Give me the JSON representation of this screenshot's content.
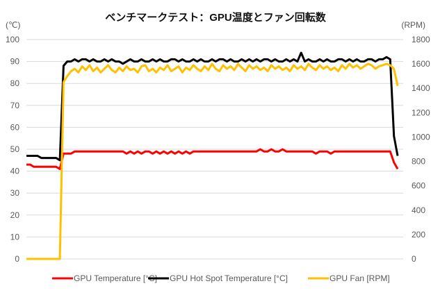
{
  "chart_data": {
    "type": "line",
    "title": "ベンチマークテスト：GPU温度とファン回転数",
    "ylabel": "(℃)",
    "y2label": "(RPM)",
    "ylim": [
      0,
      100
    ],
    "y2lim": [
      0,
      1800
    ],
    "yticks": [
      "0",
      "10",
      "20",
      "30",
      "40",
      "50",
      "60",
      "70",
      "80",
      "90",
      "100"
    ],
    "y2ticks": [
      "0",
      "200",
      "400",
      "600",
      "800",
      "1000",
      "1200",
      "1400",
      "1600",
      "1800"
    ],
    "grid": true,
    "legend_position": "bottom",
    "series": [
      {
        "name": "GPU Temperature [°C]",
        "axis": "left",
        "color": "#ff0000",
        "values": [
          43,
          43,
          42,
          42,
          42,
          42,
          42,
          42,
          42,
          41,
          48,
          48,
          48,
          49,
          49,
          49,
          49,
          49,
          49,
          49,
          49,
          49,
          49,
          49,
          49,
          49,
          49,
          48,
          49,
          48,
          49,
          48,
          49,
          49,
          48,
          49,
          48,
          49,
          48,
          49,
          48,
          49,
          48,
          49,
          48,
          49,
          49,
          49,
          49,
          49,
          49,
          49,
          49,
          49,
          49,
          49,
          49,
          49,
          49,
          49,
          49,
          49,
          49,
          50,
          49,
          49,
          50,
          49,
          49,
          50,
          49,
          49,
          49,
          49,
          49,
          49,
          49,
          49,
          48,
          49,
          49,
          49,
          48,
          49,
          49,
          49,
          49,
          49,
          49,
          49,
          49,
          49,
          49,
          49,
          49,
          49,
          49,
          49,
          49,
          44,
          41
        ]
      },
      {
        "name": "GPU Hot Spot Temperature [°C]",
        "axis": "left",
        "color": "#000000",
        "values": [
          47,
          47,
          47,
          47,
          46,
          46,
          46,
          46,
          46,
          45,
          88,
          90,
          90,
          91,
          90,
          91,
          91,
          90,
          91,
          90,
          90,
          91,
          90,
          91,
          90,
          90,
          89,
          90,
          91,
          90,
          90,
          91,
          90,
          90,
          91,
          90,
          91,
          90,
          90,
          91,
          91,
          90,
          91,
          90,
          90,
          91,
          90,
          91,
          90,
          90,
          91,
          90,
          91,
          91,
          90,
          91,
          90,
          90,
          91,
          90,
          91,
          90,
          91,
          90,
          91,
          91,
          90,
          91,
          90,
          90,
          91,
          90,
          91,
          90,
          94,
          90,
          91,
          90,
          90,
          91,
          90,
          91,
          90,
          90,
          91,
          91,
          90,
          91,
          90,
          91,
          90,
          90,
          91,
          91,
          90,
          91,
          91,
          92,
          91,
          56,
          47
        ]
      },
      {
        "name": "GPU Fan [RPM]",
        "axis": "right",
        "color": "#ffc000",
        "values": [
          0,
          0,
          0,
          0,
          0,
          0,
          0,
          0,
          0,
          0,
          1450,
          1500,
          1540,
          1560,
          1530,
          1580,
          1550,
          1590,
          1540,
          1570,
          1530,
          1560,
          1590,
          1550,
          1530,
          1570,
          1540,
          1580,
          1550,
          1560,
          1530,
          1580,
          1590,
          1540,
          1560,
          1530,
          1570,
          1550,
          1590,
          1540,
          1560,
          1580,
          1530,
          1570,
          1550,
          1590,
          1560,
          1540,
          1580,
          1550,
          1600,
          1560,
          1540,
          1590,
          1560,
          1580,
          1550,
          1600,
          1570,
          1540,
          1590,
          1560,
          1580,
          1550,
          1570,
          1540,
          1590,
          1560,
          1580,
          1550,
          1570,
          1540,
          1590,
          1560,
          1580,
          1550,
          1600,
          1570,
          1550,
          1590,
          1560,
          1580,
          1550,
          1570,
          1540,
          1590,
          1560,
          1600,
          1570,
          1590,
          1560,
          1580,
          1600,
          1590,
          1560,
          1580,
          1590,
          1600,
          1590,
          1560,
          1420
        ]
      }
    ]
  }
}
